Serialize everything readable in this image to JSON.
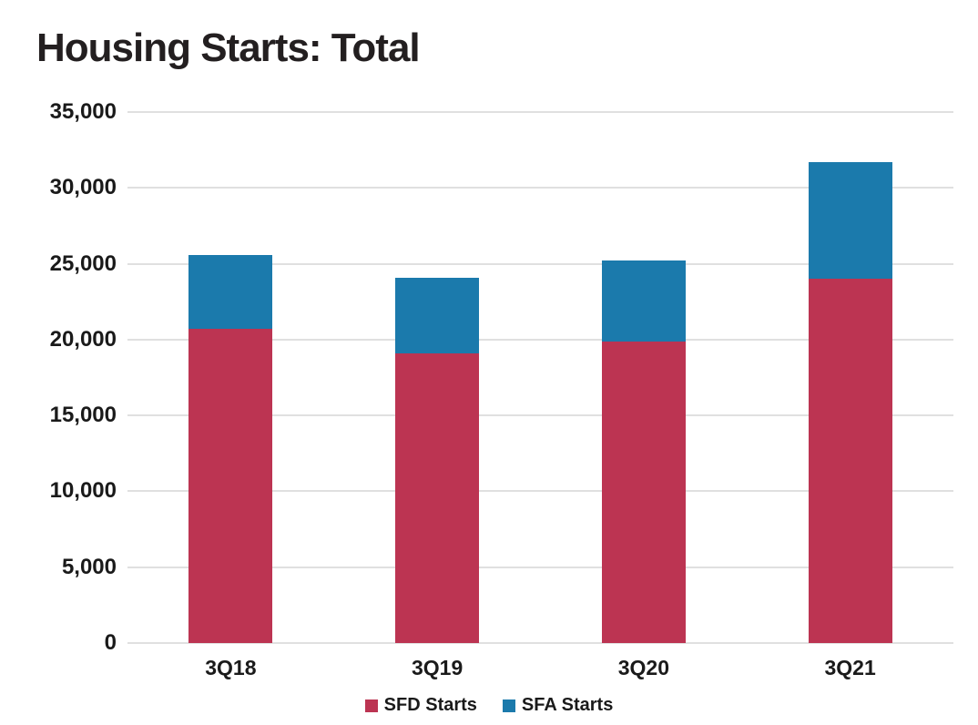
{
  "chart_data": {
    "type": "bar",
    "stacked": true,
    "title": "Housing Starts: Total",
    "categories": [
      "3Q18",
      "3Q19",
      "3Q20",
      "3Q21"
    ],
    "series": [
      {
        "name": "SFD Starts",
        "color": "#BC3452",
        "values": [
          20700,
          19100,
          19900,
          24000
        ]
      },
      {
        "name": "SFA Starts",
        "color": "#1B7AAC",
        "values": [
          4900,
          5000,
          5300,
          7700
        ]
      }
    ],
    "stacked_totals": [
      25600,
      24100,
      25200,
      31700
    ],
    "ylim": [
      0,
      35000
    ],
    "ytick_step": 5000,
    "ytick_labels": [
      "0",
      "5,000",
      "10,000",
      "15,000",
      "20,000",
      "25,000",
      "30,000",
      "35,000"
    ],
    "xlabel": "",
    "ylabel": "",
    "grid": "horizontal",
    "legend_position": "bottom"
  },
  "colors": {
    "sfd": "#BC3452",
    "sfa": "#1B7AAC",
    "title_text": "#231F20",
    "axis_text": "#1A1A1A",
    "gridline": "#E0E0E0",
    "background": "#FFFFFF"
  }
}
